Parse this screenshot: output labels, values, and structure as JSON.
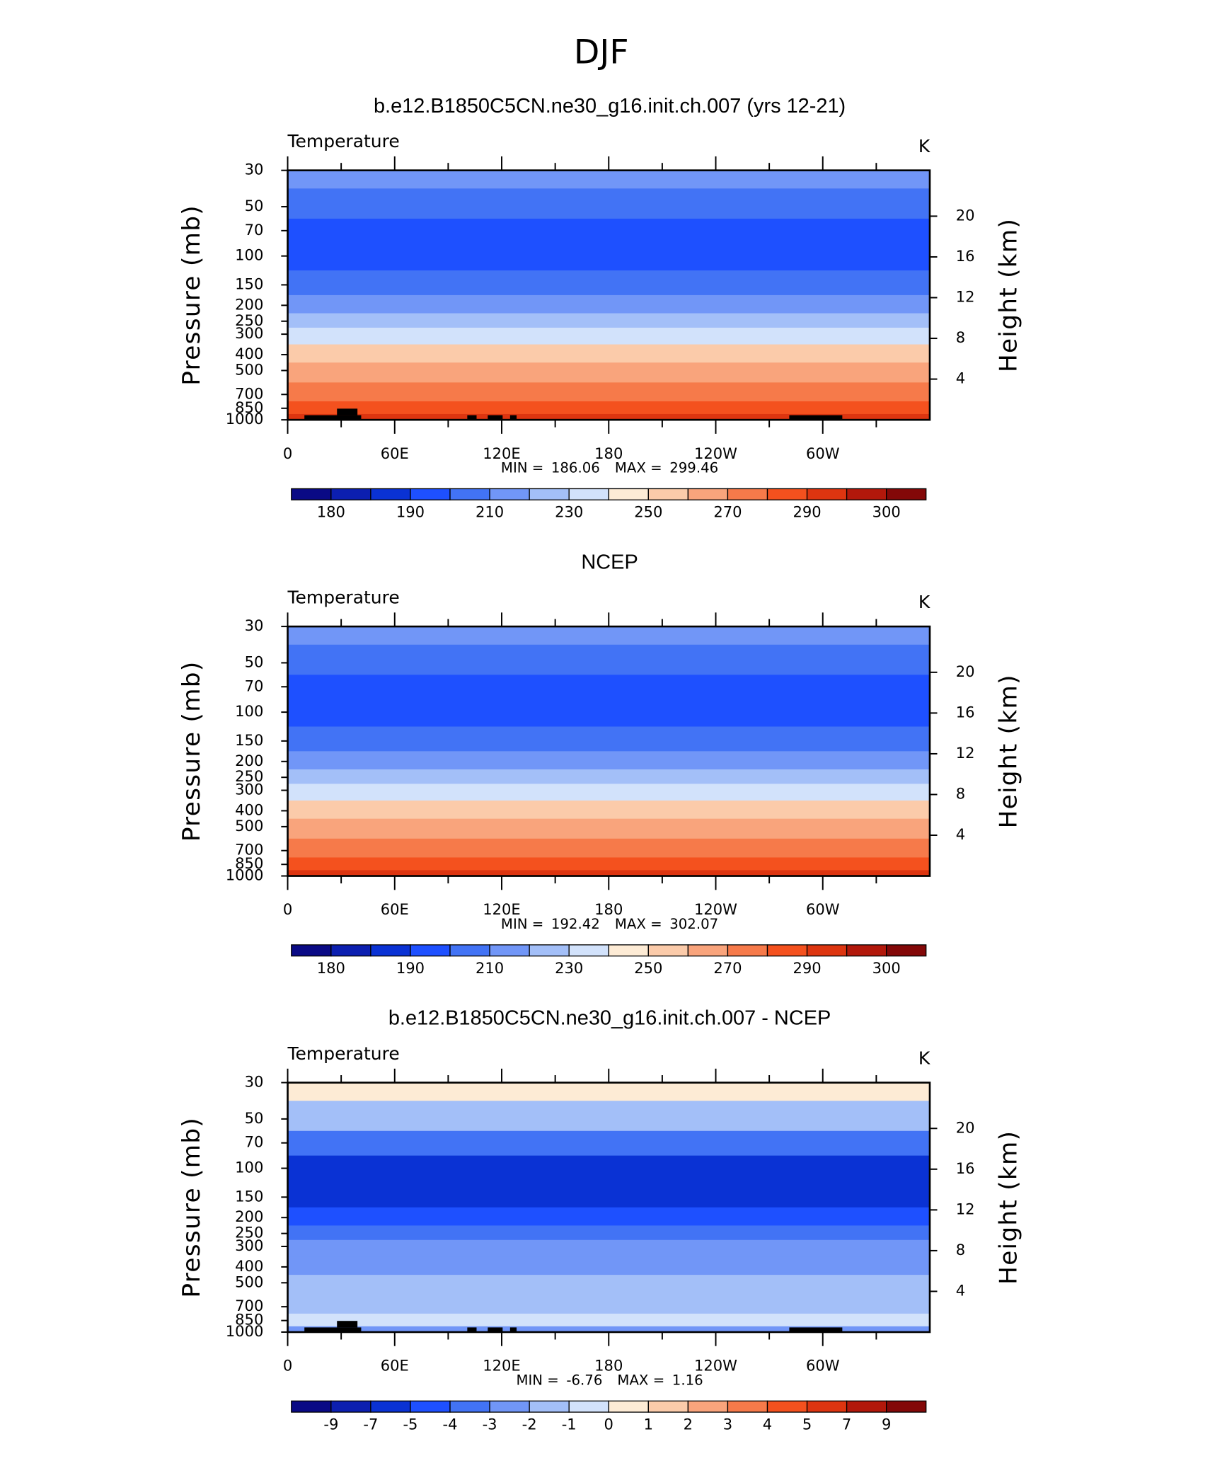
{
  "title": "DJF",
  "chart_data": [
    {
      "type": "contour",
      "title": "b.e12.B1850C5CN.ne30_g16.init.ch.007 (yrs 12-21)",
      "variable": "Temperature",
      "units": "K",
      "ylabel": "Pressure (mb)",
      "y2label": "Height (km)",
      "log_y": true,
      "xlim": [
        0,
        360
      ],
      "xticks": [
        0,
        {
          "value": 60,
          "label": "60E"
        },
        {
          "value": 120,
          "label": "120E"
        },
        180,
        {
          "value": 240,
          "label": "120W"
        },
        {
          "value": 300,
          "label": "60W"
        }
      ],
      "ylim": [
        30,
        1000
      ],
      "yticks": [
        30,
        50,
        70,
        100,
        150,
        200,
        250,
        300,
        400,
        500,
        700,
        850,
        1000
      ],
      "values": [
        215,
        205,
        197,
        196,
        205,
        215,
        225,
        235,
        252,
        265,
        278,
        286,
        292
      ],
      "y2lim": [
        0,
        24.5
      ],
      "y2ticks": [
        4,
        8,
        12,
        16,
        20
      ],
      "min_label": "MIN =",
      "min": 186.06,
      "max_label": "MAX =",
      "max": 299.46,
      "levels": [
        180,
        null,
        190,
        null,
        210,
        null,
        230,
        null,
        250,
        null,
        270,
        null,
        290,
        null,
        300
      ],
      "colors": [
        "#0a0a85",
        "#0c1fb0",
        "#0a32d4",
        "#1e50ff",
        "#4273f5",
        "#7196f7",
        "#a3bff8",
        "#d2e2fb",
        "#fdebd5",
        "#fbcbaa",
        "#f9a47c",
        "#f67a4a",
        "#f4511e",
        "#dd3510",
        "#b2180b",
        "#830808"
      ]
    },
    {
      "type": "contour",
      "title": "NCEP",
      "variable": "Temperature",
      "units": "K",
      "ylabel": "Pressure (mb)",
      "y2label": "Height (km)",
      "log_y": true,
      "xlim": [
        0,
        360
      ],
      "xticks": [
        0,
        {
          "value": 60,
          "label": "60E"
        },
        {
          "value": 120,
          "label": "120E"
        },
        180,
        {
          "value": 240,
          "label": "120W"
        },
        {
          "value": 300,
          "label": "60W"
        }
      ],
      "ylim": [
        30,
        1000
      ],
      "yticks": [
        30,
        50,
        70,
        100,
        150,
        200,
        250,
        300,
        400,
        500,
        700,
        850,
        1000
      ],
      "values": [
        215,
        205,
        198,
        198,
        205,
        215,
        225,
        237,
        253,
        266,
        279,
        287,
        294
      ],
      "y2lim": [
        0,
        24.5
      ],
      "y2ticks": [
        4,
        8,
        12,
        16,
        20
      ],
      "min_label": "MIN =",
      "min": 192.42,
      "max_label": "MAX =",
      "max": 302.07,
      "levels": [
        180,
        null,
        190,
        null,
        210,
        null,
        230,
        null,
        250,
        null,
        270,
        null,
        290,
        null,
        300
      ],
      "colors": [
        "#0a0a85",
        "#0c1fb0",
        "#0a32d4",
        "#1e50ff",
        "#4273f5",
        "#7196f7",
        "#a3bff8",
        "#d2e2fb",
        "#fdebd5",
        "#fbcbaa",
        "#f9a47c",
        "#f67a4a",
        "#f4511e",
        "#dd3510",
        "#b2180b",
        "#830808"
      ]
    },
    {
      "type": "contour",
      "title": "b.e12.B1850C5CN.ne30_g16.init.ch.007 - NCEP",
      "variable": "Temperature",
      "units": "K",
      "ylabel": "Pressure (mb)",
      "y2label": "Height (km)",
      "log_y": true,
      "xlim": [
        0,
        360
      ],
      "xticks": [
        0,
        {
          "value": 60,
          "label": "60E"
        },
        {
          "value": 120,
          "label": "120E"
        },
        180,
        {
          "value": 240,
          "label": "120W"
        },
        {
          "value": 300,
          "label": "60W"
        }
      ],
      "ylim": [
        30,
        1000
      ],
      "yticks": [
        30,
        50,
        70,
        100,
        150,
        200,
        250,
        300,
        400,
        500,
        700,
        850,
        1000
      ],
      "values": [
        0.5,
        -1.5,
        -3.5,
        -5.5,
        -5.5,
        -4.5,
        -3.5,
        -2.5,
        -2.5,
        -1.5,
        -1.5,
        -0.5,
        -2.5
      ],
      "y2lim": [
        0,
        24.5
      ],
      "y2ticks": [
        4,
        8,
        12,
        16,
        20
      ],
      "min_label": "MIN =",
      "min": -6.76,
      "max_label": "MAX =",
      "max": 1.16,
      "levels": [
        -9,
        -7,
        -5,
        -4,
        -3,
        -2,
        -1,
        0,
        1,
        2,
        3,
        4,
        5,
        7,
        9
      ],
      "colors": [
        "#0a0a85",
        "#0c1fb0",
        "#0a32d4",
        "#1e50ff",
        "#4273f5",
        "#7196f7",
        "#a3bff8",
        "#d2e2fb",
        "#fdebd5",
        "#fbcbaa",
        "#f9a47c",
        "#f67a4a",
        "#f4511e",
        "#dd3510",
        "#b2180b",
        "#830808"
      ]
    }
  ]
}
